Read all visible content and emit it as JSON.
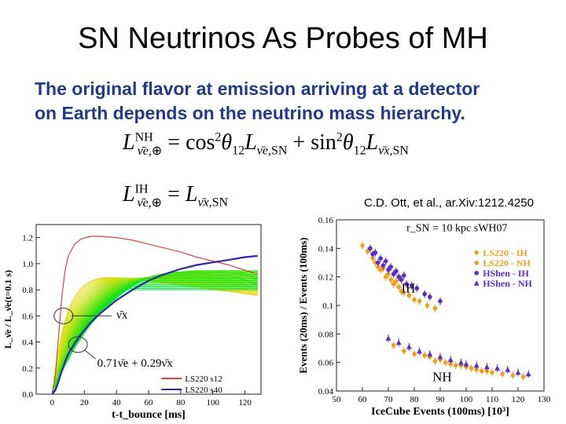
{
  "slide": {
    "title": "SN Neutrinos As Probes of MH",
    "subtitle_line1": "The original flavor at emission arriving at a detector",
    "subtitle_line2": "on Earth depends on the neutrino mass hierarchy.",
    "equation_nh": {
      "lhs_sup": "NH",
      "rhs": "cos² θ₁₂ L(ν̄e,SN) + sin² θ₁₂ L(ν̄x,SN)"
    },
    "equation_ih": {
      "lhs_sup": "IH",
      "rhs": "L(ν̄x,SN)"
    },
    "citation": "C.D. Ott, et al., ar.Xiv:1212.4250"
  },
  "chart_data": [
    {
      "type": "line",
      "xlabel": "t-t_bounce [ms]",
      "ylabel": "L_ν̄e / L_ν̄e(t=0.1 s)",
      "xlim": [
        -10,
        130
      ],
      "ylim": [
        0,
        1.3
      ],
      "xticks": [
        0,
        20,
        40,
        60,
        80,
        100,
        120
      ],
      "yticks": [
        0.0,
        0.2,
        0.4,
        0.6,
        0.8,
        1.0,
        1.2
      ],
      "annotations": [
        {
          "text": "ν̄x",
          "x": 40,
          "y": 0.58
        },
        {
          "text": "0.71ν̄e + 0.29ν̄x",
          "x": 28,
          "y": 0.21
        }
      ],
      "legend_position": "bottom-right",
      "series": [
        {
          "name": "LS220 s12",
          "color": "#d04848",
          "x": [
            0,
            2,
            4,
            6,
            8,
            10,
            14,
            18,
            24,
            30,
            40,
            50,
            60,
            70,
            80,
            90,
            100,
            110,
            120,
            128
          ],
          "y": [
            0.0,
            0.15,
            0.45,
            0.75,
            0.95,
            1.06,
            1.15,
            1.19,
            1.21,
            1.21,
            1.2,
            1.18,
            1.15,
            1.12,
            1.09,
            1.05,
            1.02,
            0.99,
            0.95,
            0.92
          ]
        },
        {
          "name": "LS220 s40",
          "color": "#2a2aa0",
          "x": [
            0,
            2,
            4,
            6,
            8,
            10,
            14,
            18,
            24,
            30,
            40,
            50,
            60,
            70,
            80,
            90,
            100,
            110,
            120,
            128
          ],
          "y": [
            0.0,
            0.03,
            0.1,
            0.18,
            0.25,
            0.31,
            0.39,
            0.46,
            0.55,
            0.62,
            0.72,
            0.8,
            0.87,
            0.92,
            0.96,
            0.99,
            1.01,
            1.03,
            1.05,
            1.06
          ]
        }
      ]
    },
    {
      "type": "scatter",
      "xlabel": "IceCube Events (100ms) [10³]",
      "ylabel": "Events (20ms) / Events (100ms)",
      "xlim": [
        50,
        130
      ],
      "ylim": [
        0.04,
        0.16
      ],
      "xticks": [
        50,
        60,
        70,
        80,
        90,
        100,
        110,
        120,
        130
      ],
      "yticks": [
        0.04,
        0.06,
        0.08,
        0.1,
        0.12,
        0.14,
        0.16
      ],
      "annotations": [
        {
          "text": "r_SN = 10 kpc   sWH07",
          "x": 77,
          "y": 0.152
        },
        {
          "text": "IH",
          "x": 75,
          "y": 0.109
        },
        {
          "text": "NH",
          "x": 87,
          "y": 0.047
        }
      ],
      "legend_position": "top-right",
      "series": [
        {
          "name": "LS220 - IH",
          "color": "#f0a020",
          "marker": "circle",
          "x": [
            60,
            62,
            64,
            65,
            66,
            67,
            68,
            69,
            70,
            71,
            72,
            73,
            74,
            75,
            76,
            78,
            80,
            82,
            85,
            88
          ],
          "y": [
            0.142,
            0.138,
            0.133,
            0.13,
            0.127,
            0.125,
            0.126,
            0.12,
            0.122,
            0.118,
            0.115,
            0.117,
            0.113,
            0.11,
            0.109,
            0.107,
            0.104,
            0.103,
            0.1,
            0.098
          ]
        },
        {
          "name": "LS220 - NH",
          "color": "#f0a020",
          "marker": "circle",
          "x": [
            72,
            76,
            80,
            84,
            86,
            88,
            90,
            92,
            94,
            96,
            98,
            100,
            102,
            104,
            106,
            108,
            110,
            114,
            118,
            122
          ],
          "y": [
            0.072,
            0.068,
            0.066,
            0.065,
            0.064,
            0.061,
            0.062,
            0.06,
            0.059,
            0.058,
            0.058,
            0.057,
            0.056,
            0.055,
            0.054,
            0.054,
            0.053,
            0.052,
            0.051,
            0.05
          ]
        },
        {
          "name": "HShen - IH",
          "color": "#5a2fc0",
          "marker": "circle",
          "x": [
            63,
            64,
            65,
            66,
            67,
            68,
            69,
            70,
            71,
            72,
            73,
            74,
            75,
            76,
            77,
            79,
            81,
            84,
            86,
            90
          ],
          "y": [
            0.14,
            0.136,
            0.137,
            0.13,
            0.133,
            0.128,
            0.131,
            0.125,
            0.127,
            0.122,
            0.124,
            0.12,
            0.118,
            0.121,
            0.115,
            0.114,
            0.112,
            0.108,
            0.106,
            0.103
          ]
        },
        {
          "name": "HShen - NH",
          "color": "#5a2fc0",
          "marker": "triangle",
          "x": [
            70,
            74,
            78,
            82,
            86,
            90,
            94,
            98,
            100,
            104,
            108,
            112,
            116,
            120,
            124
          ],
          "y": [
            0.077,
            0.074,
            0.071,
            0.068,
            0.066,
            0.064,
            0.062,
            0.06,
            0.059,
            0.058,
            0.057,
            0.056,
            0.055,
            0.053,
            0.052
          ]
        }
      ]
    }
  ]
}
